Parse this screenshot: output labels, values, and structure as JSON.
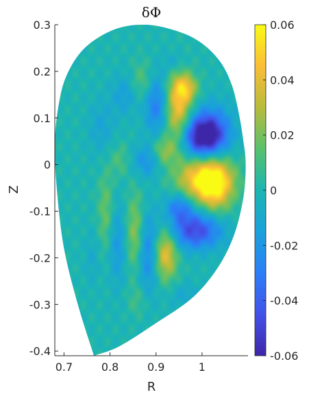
{
  "chart_data": {
    "type": "heatmap",
    "title": "δΦ",
    "xlabel": "R",
    "ylabel": "Z",
    "xlim": [
      0.68,
      1.1
    ],
    "ylim": [
      -0.41,
      0.3
    ],
    "x_ticks": [
      "0.7",
      "0.8",
      "0.9",
      "1"
    ],
    "y_ticks": [
      "0.3",
      "0.2",
      "0.1",
      "0",
      "-0.1",
      "-0.2",
      "-0.3",
      "-0.4"
    ],
    "colorbar": {
      "colormap": "parula",
      "range": [
        -0.06,
        0.06
      ],
      "ticks": [
        "0.06",
        "0.04",
        "0.02",
        "0",
        "-0.02",
        "-0.04",
        "-0.06"
      ]
    },
    "domain_boundary": {
      "description_shape": "D-shaped tokamak cross-section",
      "R": [
        0.765,
        0.73,
        0.7,
        0.685,
        0.68,
        0.687,
        0.705,
        0.745,
        0.81,
        0.88,
        0.95,
        1.0,
        1.04,
        1.065,
        1.08,
        1.09,
        1.095,
        1.09,
        1.07,
        1.035,
        0.98,
        0.9,
        0.82,
        0.765
      ],
      "Z": [
        -0.41,
        -0.3,
        -0.18,
        -0.06,
        0.04,
        0.12,
        0.19,
        0.25,
        0.29,
        0.3,
        0.285,
        0.26,
        0.22,
        0.17,
        0.11,
        0.05,
        0.0,
        -0.07,
        -0.15,
        -0.22,
        -0.285,
        -0.34,
        -0.39,
        -0.41
      ]
    },
    "features": [
      {
        "R": 0.998,
        "Z": 0.06,
        "value": -0.06,
        "sr": 0.032,
        "sz": 0.032
      },
      {
        "R": 1.025,
        "Z": 0.075,
        "value": -0.025,
        "sr": 0.03,
        "sz": 0.04
      },
      {
        "R": 1.005,
        "Z": -0.03,
        "value": 0.058,
        "sr": 0.04,
        "sz": 0.035
      },
      {
        "R": 1.03,
        "Z": -0.05,
        "value": 0.03,
        "sr": 0.025,
        "sz": 0.04
      },
      {
        "R": 0.948,
        "Z": 0.12,
        "value": 0.045,
        "sr": 0.02,
        "sz": 0.055
      },
      {
        "R": 0.965,
        "Z": 0.165,
        "value": 0.03,
        "sr": 0.018,
        "sz": 0.02
      },
      {
        "R": 0.985,
        "Z": -0.14,
        "value": -0.048,
        "sr": 0.04,
        "sz": 0.028
      },
      {
        "R": 0.95,
        "Z": -0.09,
        "value": -0.03,
        "sr": 0.022,
        "sz": 0.022
      },
      {
        "R": 0.92,
        "Z": -0.19,
        "value": 0.042,
        "sr": 0.018,
        "sz": 0.04
      },
      {
        "R": 0.88,
        "Z": -0.19,
        "value": -0.028,
        "sr": 0.018,
        "sz": 0.06
      },
      {
        "R": 0.9,
        "Z": 0.13,
        "value": -0.03,
        "sr": 0.018,
        "sz": 0.045
      },
      {
        "R": 0.915,
        "Z": 0.03,
        "value": 0.025,
        "sr": 0.02,
        "sz": 0.022
      },
      {
        "R": 0.88,
        "Z": 0.01,
        "value": -0.022,
        "sr": 0.022,
        "sz": 0.025
      },
      {
        "R": 0.855,
        "Z": -0.15,
        "value": 0.028,
        "sr": 0.014,
        "sz": 0.06
      },
      {
        "R": 0.815,
        "Z": -0.17,
        "value": -0.018,
        "sr": 0.014,
        "sz": 0.06
      },
      {
        "R": 0.79,
        "Z": -0.1,
        "value": 0.018,
        "sr": 0.012,
        "sz": 0.06
      },
      {
        "R": 0.87,
        "Z": 0.18,
        "value": 0.015,
        "sr": 0.018,
        "sz": 0.03
      },
      {
        "R": 0.83,
        "Z": 0.15,
        "value": -0.015,
        "sr": 0.02,
        "sz": 0.03
      },
      {
        "R": 0.78,
        "Z": 0.08,
        "value": -0.012,
        "sr": 0.02,
        "sz": 0.04
      },
      {
        "R": 0.96,
        "Z": -0.28,
        "value": -0.01,
        "sr": 0.025,
        "sz": 0.02
      },
      {
        "R": 0.94,
        "Z": 0.22,
        "value": -0.012,
        "sr": 0.018,
        "sz": 0.018
      },
      {
        "R": 0.86,
        "Z": -0.29,
        "value": 0.01,
        "sr": 0.015,
        "sz": 0.025
      },
      {
        "R": 0.82,
        "Z": 0.01,
        "value": 0.012,
        "sr": 0.015,
        "sz": 0.025
      },
      {
        "R": 0.76,
        "Z": -0.2,
        "value": -0.008,
        "sr": 0.012,
        "sz": 0.04
      }
    ]
  }
}
